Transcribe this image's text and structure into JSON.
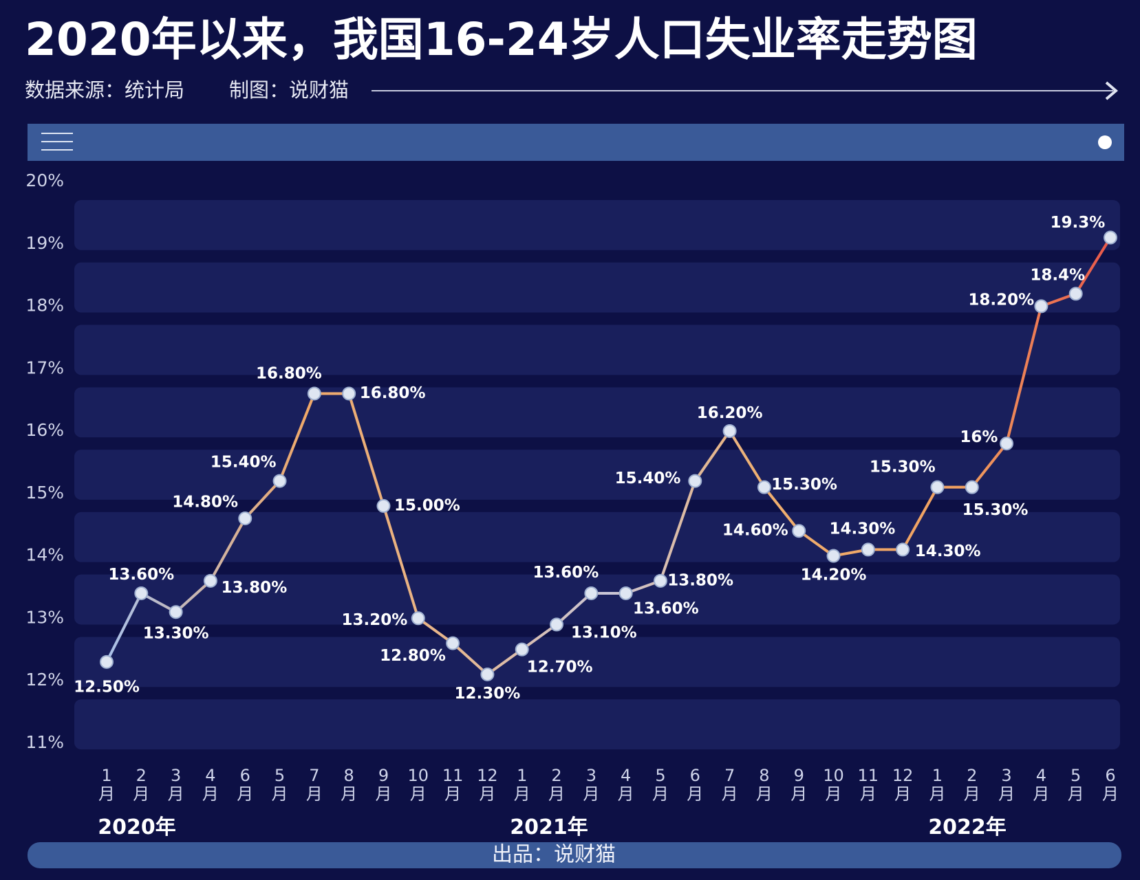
{
  "title": "2020年以来，我国16-24岁人口失业率走势图",
  "source": "数据来源：统计局",
  "author": "制图：说财猫",
  "footer": "出品：说财猫",
  "chart_data": {
    "type": "line",
    "categories": [
      "1月",
      "2月",
      "3月",
      "4月",
      "6月",
      "5月",
      "7月",
      "8月",
      "9月",
      "10月",
      "11月",
      "12月",
      "1月",
      "2月",
      "3月",
      "4月",
      "5月",
      "6月",
      "7月",
      "8月",
      "9月",
      "10月",
      "11月",
      "12月",
      "1月",
      "2月",
      "3月",
      "4月",
      "5月",
      "6月"
    ],
    "values": [
      12.5,
      13.6,
      13.3,
      13.8,
      14.8,
      15.4,
      16.8,
      16.8,
      15.0,
      13.2,
      12.8,
      12.3,
      12.7,
      13.1,
      13.6,
      13.6,
      13.8,
      15.4,
      16.2,
      15.3,
      14.6,
      14.2,
      14.3,
      14.3,
      15.3,
      15.3,
      16,
      18.2,
      18.4,
      19.3
    ],
    "value_labels": [
      "12.50%",
      "13.60%",
      "13.30%",
      "13.80%",
      "14.80%",
      "15.40%",
      "16.80%",
      "16.80%",
      "15.00%",
      "13.20%",
      "12.80%",
      "12.30%",
      "12.70%",
      "13.10%",
      "13.60%",
      "13.60%",
      "13.80%",
      "15.40%",
      "16.20%",
      "15.30%",
      "14.60%",
      "14.20%",
      "14.30%",
      "14.30%",
      "15.30%",
      "15.30%",
      "16%",
      "18.20%",
      "18.4%",
      "19.3%"
    ],
    "year_labels": [
      "2020年",
      "2021年",
      "2022年"
    ],
    "ylim": [
      11,
      20
    ],
    "yticks": [
      {
        "value": 11,
        "label": "11%"
      },
      {
        "value": 12,
        "label": "12%"
      },
      {
        "value": 13,
        "label": "13%"
      },
      {
        "value": 14,
        "label": "14%"
      },
      {
        "value": 15,
        "label": "15%"
      },
      {
        "value": 16,
        "label": "16%"
      },
      {
        "value": 17,
        "label": "17%"
      },
      {
        "value": 18,
        "label": "18%"
      },
      {
        "value": 19,
        "label": "19%"
      },
      {
        "value": 20,
        "label": "20%"
      }
    ]
  }
}
